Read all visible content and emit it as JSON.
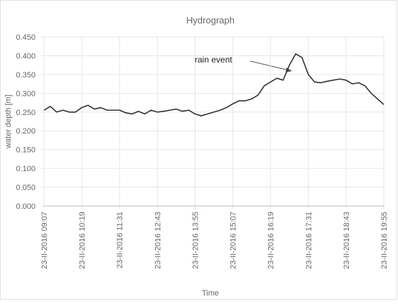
{
  "chart_data": {
    "type": "line",
    "title": "Hydrograph",
    "x_label": "Time",
    "y_label": "water depth [m]",
    "annotation": "rain event",
    "x": [
      "23-II-2016 09:07",
      "23-II-2016 09:19",
      "23-II-2016 09:31",
      "23-II-2016 09:43",
      "23-II-2016 09:55",
      "23-II-2016 10:07",
      "23-II-2016 10:19",
      "23-II-2016 10:31",
      "23-II-2016 10:43",
      "23-II-2016 10:55",
      "23-II-2016 11:07",
      "23-II-2016 11:19",
      "23-II-2016 11:31",
      "23-II-2016 11:43",
      "23-II-2016 11:55",
      "23-II-2016 12:07",
      "23-II-2016 12:19",
      "23-II-2016 12:31",
      "23-II-2016 12:43",
      "23-II-2016 12:55",
      "23-II-2016 13:07",
      "23-II-2016 13:19",
      "23-II-2016 13:31",
      "23-II-2016 13:43",
      "23-II-2016 13:55",
      "23-II-2016 14:07",
      "23-II-2016 14:19",
      "23-II-2016 14:31",
      "23-II-2016 14:43",
      "23-II-2016 14:55",
      "23-II-2016 15:07",
      "23-II-2016 15:19",
      "23-II-2016 15:31",
      "23-II-2016 15:43",
      "23-II-2016 15:55",
      "23-II-2016 16:07",
      "23-II-2016 16:19",
      "23-II-2016 16:31",
      "23-II-2016 16:43",
      "23-II-2016 16:55",
      "23-II-2016 17:07",
      "23-II-2016 17:19",
      "23-II-2016 17:31",
      "23-II-2016 17:43",
      "23-II-2016 17:55",
      "23-II-2016 18:07",
      "23-II-2016 18:19",
      "23-II-2016 18:31",
      "23-II-2016 18:43",
      "23-II-2016 18:55",
      "23-II-2016 19:07",
      "23-II-2016 19:19",
      "23-II-2016 19:31",
      "23-II-2016 19:43",
      "23-II-2016 19:55"
    ],
    "series": [
      {
        "name": "water depth",
        "color": "#333333",
        "values": [
          0.255,
          0.265,
          0.25,
          0.255,
          0.25,
          0.25,
          0.262,
          0.268,
          0.258,
          0.262,
          0.255,
          0.255,
          0.255,
          0.248,
          0.245,
          0.252,
          0.245,
          0.255,
          0.25,
          0.252,
          0.255,
          0.258,
          0.252,
          0.255,
          0.245,
          0.24,
          0.245,
          0.25,
          0.255,
          0.262,
          0.272,
          0.28,
          0.28,
          0.285,
          0.295,
          0.32,
          0.33,
          0.34,
          0.335,
          0.375,
          0.405,
          0.395,
          0.35,
          0.33,
          0.328,
          0.332,
          0.335,
          0.338,
          0.335,
          0.325,
          0.328,
          0.32,
          0.3,
          0.285,
          0.27
        ]
      }
    ],
    "xticks": [
      "23-II-2016 09:07",
      "23-II-2016 10:19",
      "23-II-2016 11:31",
      "23-II-2016 12:43",
      "23-II-2016 13:55",
      "23-II-2016 15:07",
      "23-II-2016 16:19",
      "23-II-2016 17:31",
      "23-II-2016 18:43",
      "23-II-2016 19:55"
    ],
    "ylim": [
      0,
      0.45
    ],
    "yticks": [
      {
        "value": 0,
        "label": "0.000"
      },
      {
        "value": 0.05,
        "label": "0.050"
      },
      {
        "value": 0.1,
        "label": "0.100"
      },
      {
        "value": 0.15,
        "label": "0.150"
      },
      {
        "value": 0.2,
        "label": "0.200"
      },
      {
        "value": 0.25,
        "label": "0.250"
      },
      {
        "value": 0.3,
        "label": "0.300"
      },
      {
        "value": 0.35,
        "label": "0.350"
      },
      {
        "value": 0.4,
        "label": "0.400"
      },
      {
        "value": 0.45,
        "label": "0.450"
      }
    ],
    "grid": true
  }
}
